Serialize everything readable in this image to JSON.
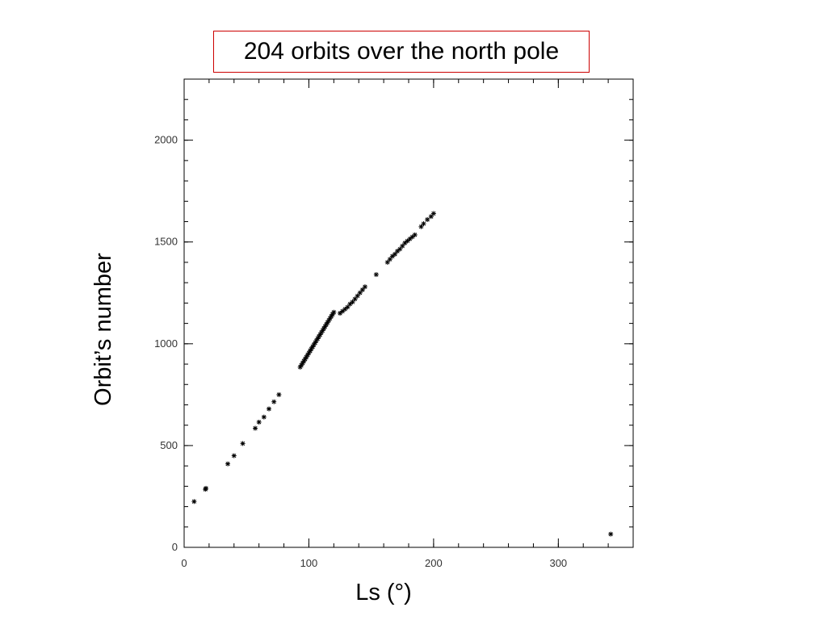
{
  "chart_data": {
    "type": "scatter",
    "title": "204 orbits over the north pole",
    "xlabel": "Ls (°)",
    "ylabel": "Orbit’s number",
    "xlim": [
      0,
      360
    ],
    "ylim": [
      0,
      2300
    ],
    "x_ticks": [
      0,
      100,
      200,
      300
    ],
    "y_ticks": [
      0,
      500,
      1000,
      1500,
      2000
    ],
    "grid": false,
    "marker": "asterisk",
    "color": "#000000",
    "x": [
      8,
      17,
      17.5,
      35,
      40,
      47,
      57,
      60,
      64,
      68,
      72,
      76,
      93,
      94,
      95,
      96,
      97,
      98,
      99,
      100,
      101,
      102,
      103,
      104,
      105,
      106,
      107,
      108,
      109,
      110,
      111,
      112,
      113,
      114,
      115,
      116,
      117,
      118,
      119,
      120,
      125,
      127,
      129,
      131,
      133,
      135,
      137,
      139,
      141,
      143,
      145,
      154,
      163,
      165,
      167,
      169,
      171,
      173,
      175,
      177,
      179,
      181,
      183,
      185,
      190,
      192,
      195,
      198,
      200,
      342
    ],
    "y": [
      225,
      285,
      290,
      410,
      450,
      510,
      585,
      615,
      640,
      680,
      715,
      750,
      885,
      895,
      905,
      915,
      925,
      935,
      945,
      955,
      965,
      975,
      985,
      995,
      1005,
      1015,
      1025,
      1035,
      1045,
      1055,
      1065,
      1075,
      1085,
      1095,
      1105,
      1115,
      1125,
      1135,
      1145,
      1155,
      1150,
      1160,
      1170,
      1180,
      1195,
      1205,
      1220,
      1235,
      1250,
      1265,
      1280,
      1340,
      1400,
      1415,
      1430,
      1440,
      1455,
      1465,
      1480,
      1495,
      1505,
      1515,
      1525,
      1535,
      1575,
      1590,
      1610,
      1625,
      1640,
      65
    ]
  }
}
